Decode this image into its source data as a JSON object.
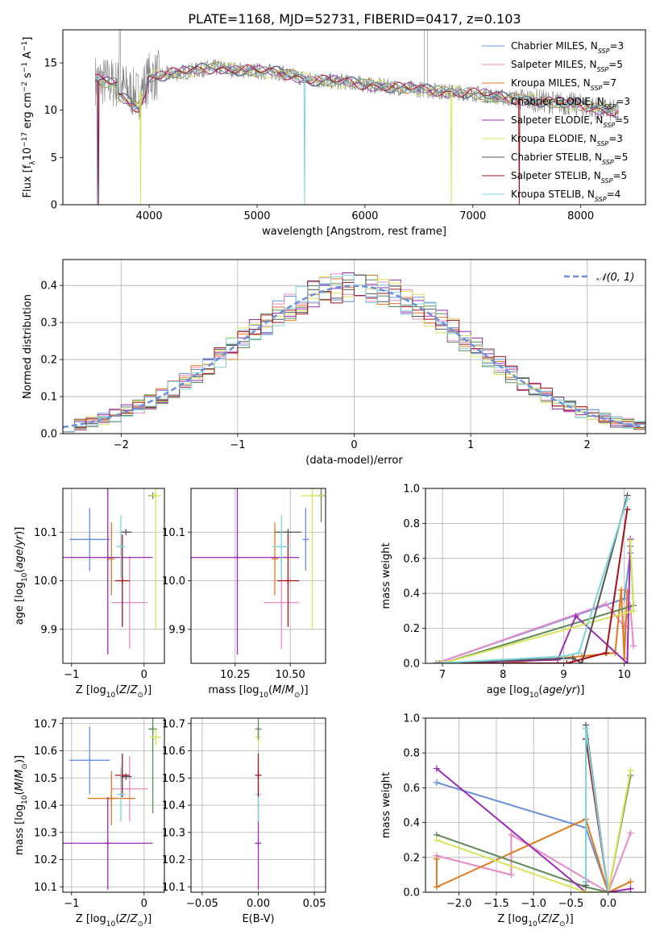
{
  "figure": {
    "title": "PLATE=1168, MJD=52731, FIBERID=0417, z=0.103"
  },
  "colors": {
    "Chabrier MILES": "#6A8FDB",
    "Salpeter MILES": "#E58BC5",
    "Kroupa MILES": "#E07A1F",
    "Chabrier ELODIE": "#5E8A5A",
    "Salpeter ELODIE": "#9B2CB5",
    "Kroupa ELODIE": "#D8E55A",
    "Chabrier STELIB": "#555555",
    "Salpeter STELIB": "#A3121C",
    "Kroupa STELIB": "#7FD3DA",
    "data": "#7F7F7F"
  },
  "chart_data": [
    {
      "type": "line",
      "id": "spectrum",
      "xlabel": "wavelength [Angstrom, rest frame]",
      "ylabel": "Flux [f_λ10^-17 erg cm^-2 s^-1 A^-1]",
      "xlim": [
        3200,
        8600
      ],
      "ylim": [
        0,
        18.5
      ],
      "xticks": [
        "4000",
        "5000",
        "6000",
        "7000",
        "8000"
      ],
      "yticks": [
        "0",
        "5",
        "10",
        "15"
      ],
      "legend_position": "top-right",
      "legend": [
        {
          "name": "Chabrier MILES, N",
          "sub": "SSP",
          "n": "=3"
        },
        {
          "name": "Salpeter MILES, N",
          "sub": "SSP",
          "n": "=5"
        },
        {
          "name": "Kroupa MILES, N",
          "sub": "SSP",
          "n": "=7"
        },
        {
          "name": "Chabrier ELODIE, N",
          "sub": "SSP",
          "n": "=3"
        },
        {
          "name": "Salpeter ELODIE, N",
          "sub": "SSP",
          "n": "=5"
        },
        {
          "name": "Kroupa ELODIE, N",
          "sub": "SSP",
          "n": "=3"
        },
        {
          "name": "Chabrier STELIB, N",
          "sub": "SSP",
          "n": "=5"
        },
        {
          "name": "Salpeter STELIB, N",
          "sub": "SSP",
          "n": "=5"
        },
        {
          "name": "Kroupa STELIB, N",
          "sub": "SSP",
          "n": "=4"
        }
      ],
      "continuum": [
        [
          3500,
          13.2
        ],
        [
          3700,
          12.8
        ],
        [
          3900,
          11.5
        ],
        [
          4000,
          13.5
        ],
        [
          4300,
          14.0
        ],
        [
          4600,
          14.5
        ],
        [
          4900,
          14.2
        ],
        [
          5200,
          14.0
        ],
        [
          5500,
          13.2
        ],
        [
          5800,
          13.0
        ],
        [
          6100,
          12.6
        ],
        [
          6400,
          12.3
        ],
        [
          6700,
          12.0
        ],
        [
          7000,
          11.8
        ],
        [
          7300,
          11.3
        ],
        [
          7600,
          11.0
        ],
        [
          8000,
          10.5
        ],
        [
          8350,
          9.8
        ]
      ],
      "model_drops": [
        {
          "series": "Chabrier MILES",
          "x": 3520
        },
        {
          "series": "Salpeter STELIB",
          "x": 3530
        },
        {
          "series": "Kroupa ELODIE",
          "x": 3920
        },
        {
          "series": "Kroupa STELIB",
          "x": 5440
        },
        {
          "series": "Kroupa ELODIE",
          "x": 6800
        },
        {
          "series": "Salpeter STELIB",
          "x": 7430
        }
      ]
    },
    {
      "type": "line",
      "id": "residual-histogram",
      "xlabel": "(data-model)/error",
      "ylabel": "Normed distribution",
      "xlim": [
        -2.5,
        2.5
      ],
      "ylim": [
        0,
        0.47
      ],
      "xticks": [
        "−2",
        "−1",
        "0",
        "1",
        "2"
      ],
      "yticks": [
        "0.0",
        "0.1",
        "0.2",
        "0.3",
        "0.4"
      ],
      "reference_curve": {
        "name": "𝒩(0, 1)",
        "mean": 0,
        "sigma": 1
      },
      "bins": 50
    },
    {
      "type": "scatter",
      "id": "age-vs-metallicity",
      "xlabel": "Z [log10(Z/Z⊙)]",
      "ylabel": "age  [log10(age/yr)]",
      "xlim": [
        -1.12,
        0.28
      ],
      "ylim": [
        9.83,
        10.19
      ],
      "xticks": [
        "−1",
        "0"
      ],
      "yticks": [
        "9.9",
        "10.0",
        "10.1"
      ],
      "points": [
        {
          "series": "Chabrier MILES",
          "x": -0.75,
          "y": 10.085,
          "xerr": 0.28,
          "yerr": 0.065
        },
        {
          "series": "Salpeter MILES",
          "x": -0.2,
          "y": 9.955,
          "xerr": 0.25,
          "yerr": 0.095
        },
        {
          "series": "Kroupa MILES",
          "x": -0.45,
          "y": 10.045,
          "xerr": 0.0,
          "yerr": 0.075
        },
        {
          "series": "Chabrier ELODIE",
          "x": 0.12,
          "y": 10.175,
          "xerr": 0.06,
          "yerr": 0.0
        },
        {
          "series": "Salpeter ELODIE",
          "x": -0.5,
          "y": 10.048,
          "xerr": 0.62,
          "yerr": 0.2
        },
        {
          "series": "Kroupa ELODIE",
          "x": 0.16,
          "y": 10.175,
          "xerr": 0.08,
          "yerr": 0.275
        },
        {
          "series": "Chabrier STELIB",
          "x": -0.25,
          "y": 10.1,
          "xerr": 0.08,
          "yerr": 0.0
        },
        {
          "series": "Salpeter STELIB",
          "x": -0.3,
          "y": 10.0,
          "xerr": 0.1,
          "yerr": 0.095
        },
        {
          "series": "Kroupa STELIB",
          "x": -0.32,
          "y": 10.07,
          "xerr": 0.06,
          "yerr": 0.065
        }
      ]
    },
    {
      "type": "scatter",
      "id": "age-vs-mass",
      "xlabel": "mass [log10(M/M⊙)]",
      "ylabel": "",
      "xlim": [
        10.05,
        10.66
      ],
      "ylim": [
        9.83,
        10.19
      ],
      "xticks": [
        "10.25",
        "10.50"
      ],
      "yticks": [
        "9.9",
        "10.0",
        "10.1"
      ],
      "points": [
        {
          "series": "Chabrier MILES",
          "x": 10.57,
          "y": 10.085,
          "xerr": 0.0,
          "yerr": 0.065
        },
        {
          "series": "Salpeter MILES",
          "x": 10.46,
          "y": 9.955,
          "xerr": 0.08,
          "yerr": 0.095
        },
        {
          "series": "Kroupa MILES",
          "x": 10.43,
          "y": 10.045,
          "xerr": 0.0,
          "yerr": 0.075
        },
        {
          "series": "Chabrier ELODIE",
          "x": 10.64,
          "y": 10.175,
          "xerr": 0.0,
          "yerr": 0.055
        },
        {
          "series": "Salpeter ELODIE",
          "x": 10.26,
          "y": 10.048,
          "xerr": 0.28,
          "yerr": 0.2
        },
        {
          "series": "Kroupa ELODIE",
          "x": 10.6,
          "y": 10.175,
          "xerr": 0.05,
          "yerr": 0.275
        },
        {
          "series": "Chabrier STELIB",
          "x": 10.49,
          "y": 10.1,
          "xerr": 0.06,
          "yerr": 0.0
        },
        {
          "series": "Salpeter STELIB",
          "x": 10.49,
          "y": 10.0,
          "xerr": 0.05,
          "yerr": 0.095
        },
        {
          "series": "Kroupa STELIB",
          "x": 10.46,
          "y": 10.07,
          "xerr": 0.04,
          "yerr": 0.065
        }
      ]
    },
    {
      "type": "line",
      "id": "mass-weight-vs-age",
      "xlabel": "age  [log10(age/yr)]",
      "ylabel": "mass weight",
      "xlim": [
        6.72,
        10.35
      ],
      "ylim": [
        0,
        1.0
      ],
      "xticks": [
        "7",
        "8",
        "9",
        "10"
      ],
      "yticks": [
        "0.0",
        "0.2",
        "0.4",
        "0.6",
        "0.8",
        "1.0"
      ],
      "series": [
        {
          "name": "Chabrier MILES",
          "x": [
            6.9,
            10.0,
            10.1
          ],
          "y": [
            0.0,
            0.37,
            0.63
          ]
        },
        {
          "name": "Salpeter MILES",
          "x": [
            6.9,
            9.7,
            10.0,
            10.1,
            10.15
          ],
          "y": [
            0.0,
            0.34,
            0.21,
            0.33,
            0.1
          ]
        },
        {
          "name": "Kroupa MILES",
          "x": [
            6.95,
            8.0,
            9.3,
            9.85,
            9.95,
            10.0,
            10.05
          ],
          "y": [
            0.0,
            0.0,
            0.04,
            0.06,
            0.42,
            0.03,
            0.41
          ]
        },
        {
          "name": "Chabrier ELODIE",
          "x": [
            7.0,
            10.15,
            10.1
          ],
          "y": [
            0.0,
            0.33,
            0.67
          ]
        },
        {
          "name": "Salpeter ELODIE",
          "x": [
            6.9,
            8.9,
            9.2,
            10.05,
            10.1
          ],
          "y": [
            0.0,
            0.02,
            0.27,
            0.0,
            0.71
          ]
        },
        {
          "name": "Kroupa ELODIE",
          "x": [
            7.0,
            10.15,
            10.1
          ],
          "y": [
            0.0,
            0.3,
            0.7
          ]
        },
        {
          "name": "Chabrier STELIB",
          "x": [
            6.9,
            9.15,
            9.3,
            10.05
          ],
          "y": [
            0.0,
            0.03,
            0.0,
            0.96
          ]
        },
        {
          "name": "Salpeter STELIB",
          "x": [
            6.9,
            9.05,
            9.7,
            10.05
          ],
          "y": [
            0.0,
            0.0,
            0.06,
            0.88
          ]
        },
        {
          "name": "Kroupa STELIB",
          "x": [
            6.9,
            9.0,
            9.25,
            10.05
          ],
          "y": [
            0.0,
            0.04,
            0.06,
            0.94
          ]
        }
      ]
    },
    {
      "type": "scatter",
      "id": "mass-vs-metallicity",
      "xlabel": "Z [log10(Z/Z⊙)]",
      "ylabel": "mass [log10(M/M⊙)]",
      "xlim": [
        -1.12,
        0.28
      ],
      "ylim": [
        10.08,
        10.72
      ],
      "xticks": [
        "−1",
        "0"
      ],
      "yticks": [
        "10.1",
        "10.2",
        "10.3",
        "10.4",
        "10.5",
        "10.6",
        "10.7"
      ],
      "points": [
        {
          "series": "Chabrier MILES",
          "x": -0.75,
          "y": 10.565,
          "xerr": 0.28,
          "yerr": 0.125
        },
        {
          "series": "Salpeter MILES",
          "x": -0.2,
          "y": 10.46,
          "xerr": 0.25,
          "yerr": 0.12
        },
        {
          "series": "Kroupa MILES",
          "x": -0.45,
          "y": 10.425,
          "xerr": 0.33,
          "yerr": 0.1
        },
        {
          "series": "Chabrier ELODIE",
          "x": 0.12,
          "y": 10.68,
          "xerr": 0.06,
          "yerr": 0.31
        },
        {
          "series": "Salpeter ELODIE",
          "x": -0.5,
          "y": 10.26,
          "xerr": 0.62,
          "yerr": 0.17
        },
        {
          "series": "Kroupa ELODIE",
          "x": 0.16,
          "y": 10.65,
          "xerr": 0.08,
          "yerr": 0.03
        },
        {
          "series": "Chabrier STELIB",
          "x": -0.25,
          "y": 10.505,
          "xerr": 0.08,
          "yerr": 0.0
        },
        {
          "series": "Salpeter STELIB",
          "x": -0.3,
          "y": 10.51,
          "xerr": 0.1,
          "yerr": 0.08
        },
        {
          "series": "Kroupa STELIB",
          "x": -0.32,
          "y": 10.44,
          "xerr": 0.06,
          "yerr": 0.1
        }
      ]
    },
    {
      "type": "scatter",
      "id": "mass-vs-extinction",
      "xlabel": "E(B-V)",
      "ylabel": "",
      "xlim": [
        -0.06,
        0.06
      ],
      "ylim": [
        10.08,
        10.72
      ],
      "xticks": [
        "−0.05",
        "0.00",
        "0.05"
      ],
      "yticks": [
        "10.1",
        "10.2",
        "10.3",
        "10.4",
        "10.5",
        "10.6",
        "10.7"
      ],
      "points": [
        {
          "series": "Salpeter ELODIE",
          "x": 0.0,
          "y": 10.26,
          "xerr": 0.0,
          "yerr": 0.17
        },
        {
          "series": "Kroupa STELIB",
          "x": 0.0,
          "y": 10.44,
          "xerr": 0.0,
          "yerr": 0.1
        },
        {
          "series": "Salpeter STELIB",
          "x": 0.0,
          "y": 10.51,
          "xerr": 0.0,
          "yerr": 0.08
        },
        {
          "series": "Kroupa ELODIE",
          "x": 0.0,
          "y": 10.65,
          "xerr": 0.0,
          "yerr": 0.03
        },
        {
          "series": "Chabrier ELODIE",
          "x": 0.0,
          "y": 10.68,
          "xerr": 0.0,
          "yerr": 0.04
        }
      ]
    },
    {
      "type": "line",
      "id": "mass-weight-vs-metallicity",
      "xlabel": "Z [log10(Z/Z⊙)]",
      "ylabel": "mass weight",
      "xlim": [
        -2.45,
        0.5
      ],
      "ylim": [
        0,
        1.0
      ],
      "xticks": [
        "−2.0",
        "−1.5",
        "−1.0",
        "−0.5",
        "0.0"
      ],
      "yticks": [
        "0.0",
        "0.2",
        "0.4",
        "0.6",
        "0.8",
        "1.0"
      ],
      "series": [
        {
          "name": "Chabrier MILES",
          "x": [
            -2.3,
            -0.3,
            0.0
          ],
          "y": [
            0.63,
            0.37,
            0.0
          ]
        },
        {
          "name": "Salpeter MILES",
          "x": [
            -2.3,
            -1.3,
            -1.3,
            0.0,
            0.3
          ],
          "y": [
            0.21,
            0.1,
            0.33,
            0.0,
            0.34
          ]
        },
        {
          "name": "Kroupa MILES",
          "x": [
            -2.3,
            -2.3,
            -0.3,
            0.0,
            0.3
          ],
          "y": [
            0.19,
            0.03,
            0.42,
            0.0,
            0.06
          ]
        },
        {
          "name": "Chabrier ELODIE",
          "x": [
            -2.3,
            -0.3,
            0.0,
            0.3
          ],
          "y": [
            0.33,
            0.03,
            0.0,
            0.67
          ]
        },
        {
          "name": "Salpeter ELODIE",
          "x": [
            -2.3,
            -0.3,
            0.0,
            0.3
          ],
          "y": [
            0.71,
            0.0,
            0.0,
            0.02
          ]
        },
        {
          "name": "Kroupa ELODIE",
          "x": [
            -2.3,
            -0.3,
            0.0,
            0.3
          ],
          "y": [
            0.3,
            0.0,
            0.0,
            0.7
          ]
        },
        {
          "name": "Chabrier STELIB",
          "x": [
            -0.3,
            -0.3,
            0.0
          ],
          "y": [
            0.04,
            0.96,
            0.0
          ]
        },
        {
          "name": "Salpeter STELIB",
          "x": [
            -0.3,
            -0.3,
            0.0
          ],
          "y": [
            0.06,
            0.88,
            0.0
          ]
        },
        {
          "name": "Kroupa STELIB",
          "x": [
            -0.3,
            -0.3,
            0.0
          ],
          "y": [
            0.06,
            0.94,
            0.0
          ]
        }
      ]
    }
  ]
}
